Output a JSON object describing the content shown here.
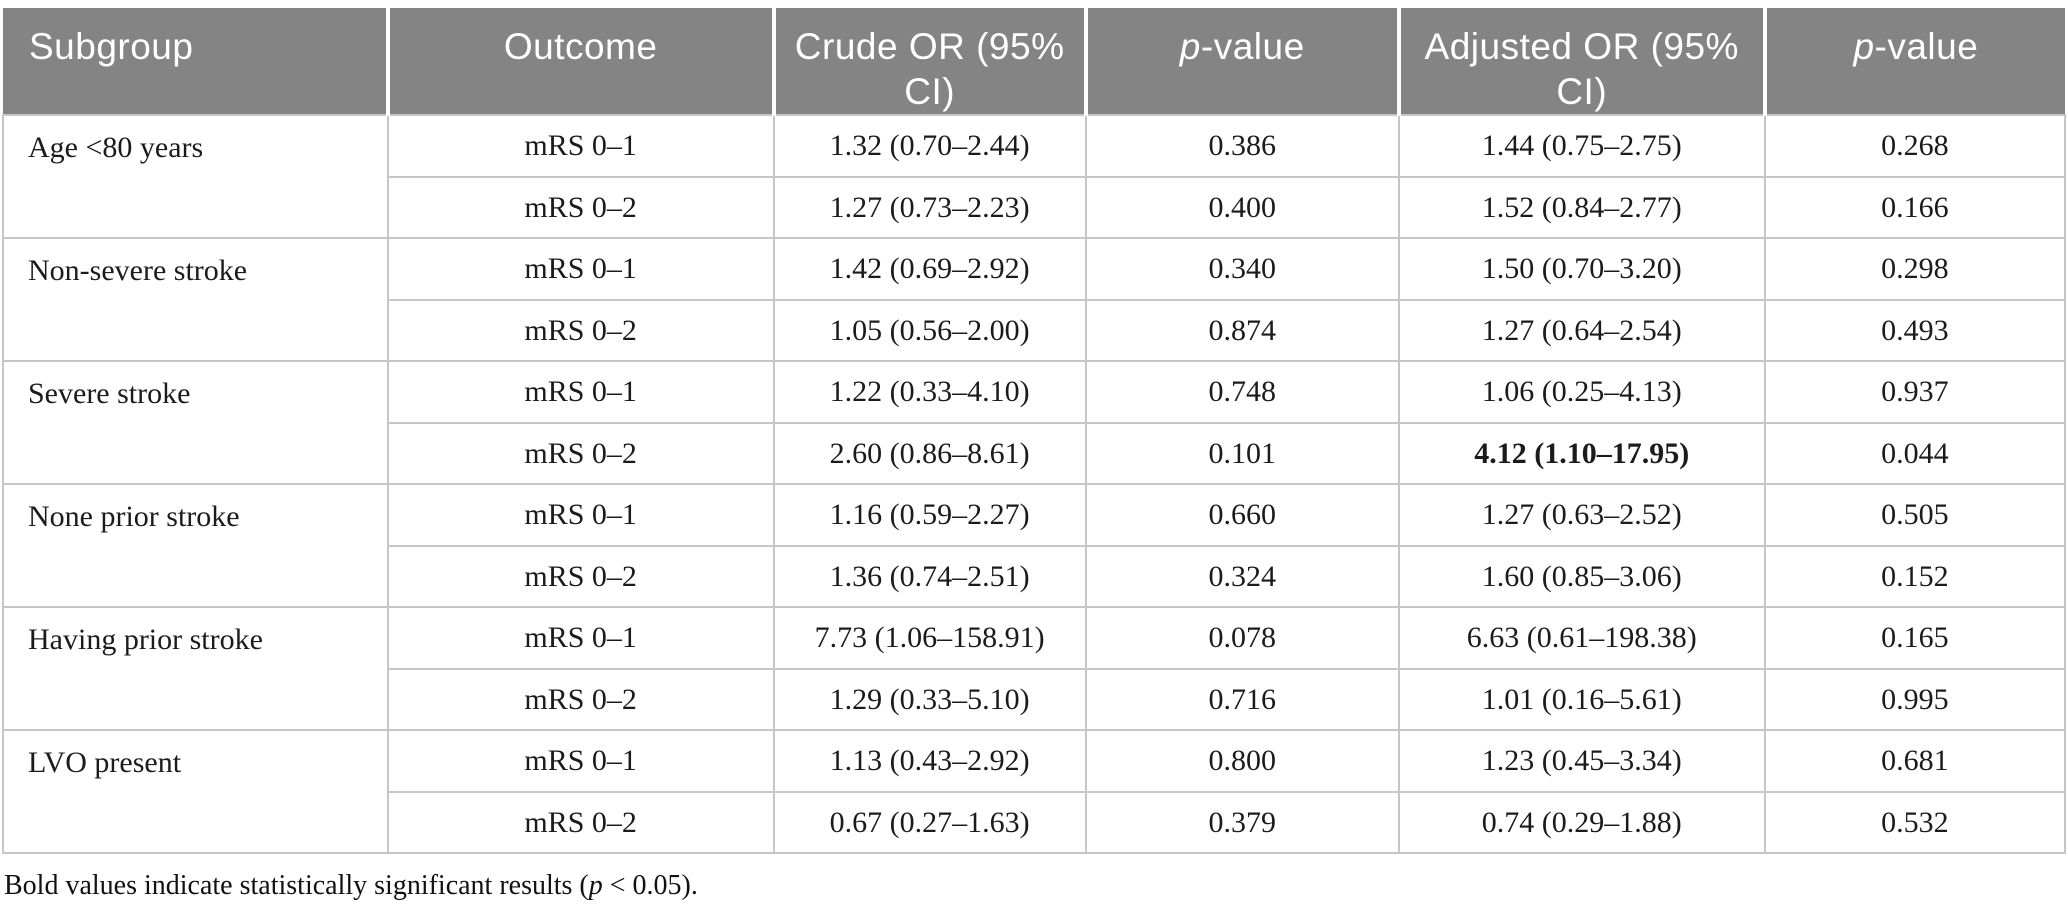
{
  "table": {
    "headers": [
      {
        "key": "subgroup",
        "text": "Subgroup"
      },
      {
        "key": "outcome",
        "text": "Outcome"
      },
      {
        "key": "crude-or",
        "text": "Crude OR (95% CI)"
      },
      {
        "key": "crude-p",
        "italic": "p",
        "text": "-value"
      },
      {
        "key": "adjusted-or",
        "text": "Adjusted OR (95% CI)"
      },
      {
        "key": "adjusted-p",
        "italic": "p",
        "text": "-value"
      }
    ],
    "groups": [
      {
        "subgroup": "Age <80 years",
        "rows": [
          {
            "outcome": "mRS 0–1",
            "crude_or": "1.32 (0.70–2.44)",
            "crude_p": "0.386",
            "adjusted_or": "1.44 (0.75–2.75)",
            "adjusted_p": "0.268",
            "adjusted_bold": false
          },
          {
            "outcome": "mRS 0–2",
            "crude_or": "1.27 (0.73–2.23)",
            "crude_p": "0.400",
            "adjusted_or": "1.52 (0.84–2.77)",
            "adjusted_p": "0.166",
            "adjusted_bold": false
          }
        ]
      },
      {
        "subgroup": "Non-severe stroke",
        "rows": [
          {
            "outcome": "mRS 0–1",
            "crude_or": "1.42 (0.69–2.92)",
            "crude_p": "0.340",
            "adjusted_or": "1.50 (0.70–3.20)",
            "adjusted_p": "0.298",
            "adjusted_bold": false
          },
          {
            "outcome": "mRS 0–2",
            "crude_or": "1.05 (0.56–2.00)",
            "crude_p": "0.874",
            "adjusted_or": "1.27 (0.64–2.54)",
            "adjusted_p": "0.493",
            "adjusted_bold": false
          }
        ]
      },
      {
        "subgroup": "Severe stroke",
        "rows": [
          {
            "outcome": "mRS 0–1",
            "crude_or": "1.22 (0.33–4.10)",
            "crude_p": "0.748",
            "adjusted_or": "1.06 (0.25–4.13)",
            "adjusted_p": "0.937",
            "adjusted_bold": false
          },
          {
            "outcome": "mRS 0–2",
            "crude_or": "2.60 (0.86–8.61)",
            "crude_p": "0.101",
            "adjusted_or": "4.12 (1.10–17.95)",
            "adjusted_p": "0.044",
            "adjusted_bold": true
          }
        ]
      },
      {
        "subgroup": "None prior stroke",
        "rows": [
          {
            "outcome": "mRS 0–1",
            "crude_or": "1.16 (0.59–2.27)",
            "crude_p": "0.660",
            "adjusted_or": "1.27 (0.63–2.52)",
            "adjusted_p": "0.505",
            "adjusted_bold": false
          },
          {
            "outcome": "mRS 0–2",
            "crude_or": "1.36 (0.74–2.51)",
            "crude_p": "0.324",
            "adjusted_or": "1.60 (0.85–3.06)",
            "adjusted_p": "0.152",
            "adjusted_bold": false
          }
        ]
      },
      {
        "subgroup": "Having prior stroke",
        "rows": [
          {
            "outcome": "mRS 0–1",
            "crude_or": "7.73 (1.06–158.91)",
            "crude_p": "0.078",
            "adjusted_or": "6.63 (0.61–198.38)",
            "adjusted_p": "0.165",
            "adjusted_bold": false
          },
          {
            "outcome": "mRS 0–2",
            "crude_or": "1.29 (0.33–5.10)",
            "crude_p": "0.716",
            "adjusted_or": "1.01 (0.16–5.61)",
            "adjusted_p": "0.995",
            "adjusted_bold": false
          }
        ]
      },
      {
        "subgroup": "LVO present",
        "rows": [
          {
            "outcome": "mRS 0–1",
            "crude_or": "1.13 (0.43–2.92)",
            "crude_p": "0.800",
            "adjusted_or": "1.23 (0.45–3.34)",
            "adjusted_p": "0.681",
            "adjusted_bold": false
          },
          {
            "outcome": "mRS 0–2",
            "crude_or": "0.67 (0.27–1.63)",
            "crude_p": "0.379",
            "adjusted_or": "0.74 (0.29–1.88)",
            "adjusted_p": "0.532",
            "adjusted_bold": false
          }
        ]
      }
    ]
  },
  "footnote": {
    "pre": "Bold values indicate statistically significant results (",
    "italic": "p",
    "post": " < 0.05)."
  },
  "colors": {
    "header_bg": "#848484",
    "header_text": "#ffffff",
    "border": "#c6c6c6",
    "body_text": "#1b1b1b"
  }
}
